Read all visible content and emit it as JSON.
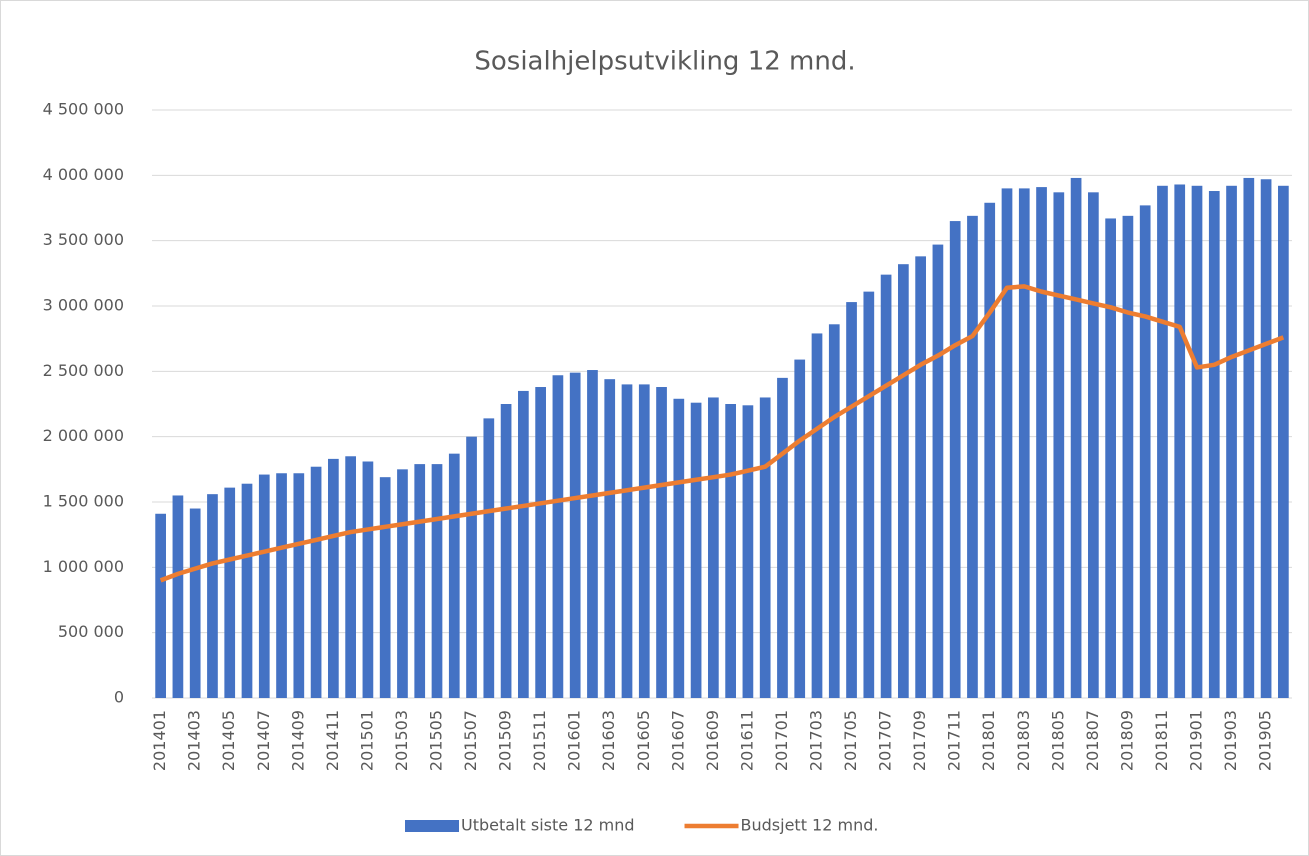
{
  "chart_data": {
    "type": "bar_line",
    "title": "Sosialhjelpsutvikling 12 mnd.",
    "categories": [
      "201401",
      null,
      "201403",
      null,
      "201405",
      null,
      "201407",
      null,
      "201409",
      null,
      "201411",
      null,
      "201501",
      null,
      "201503",
      null,
      "201505",
      null,
      "201507",
      null,
      "201509",
      null,
      "201511",
      null,
      "201601",
      null,
      "201603",
      null,
      "201605",
      null,
      "201607",
      null,
      "201609",
      null,
      "201611",
      null,
      "201701",
      null,
      "201703",
      null,
      "201705",
      null,
      "201707",
      null,
      "201709",
      null,
      "201711",
      null,
      "201801",
      null,
      "201803",
      null,
      "201805",
      null,
      "201807",
      null,
      "201809",
      null,
      "201811",
      null,
      "201901",
      null,
      "201903",
      null,
      "201905",
      null
    ],
    "series": [
      {
        "name": "Utbetalt siste 12 mnd",
        "color": "#4472c4",
        "kind": "bar",
        "values": [
          1410000,
          1550000,
          1450000,
          1560000,
          1610000,
          1640000,
          1710000,
          1720000,
          1720000,
          1770000,
          1830000,
          1850000,
          1810000,
          1690000,
          1750000,
          1790000,
          1790000,
          1870000,
          2000000,
          2140000,
          2250000,
          2350000,
          2380000,
          2470000,
          2490000,
          2510000,
          2440000,
          2400000,
          2400000,
          2380000,
          2290000,
          2260000,
          2300000,
          2250000,
          2240000,
          2300000,
          2450000,
          2590000,
          2790000,
          2860000,
          3030000,
          3110000,
          3240000,
          3320000,
          3380000,
          3470000,
          3650000,
          3690000,
          3790000,
          3900000,
          3900000,
          3910000,
          3870000,
          3980000,
          3870000,
          3670000,
          3690000,
          3770000,
          3920000,
          3930000,
          3920000,
          3880000,
          3920000,
          3980000,
          3970000,
          3920000
        ]
      },
      {
        "name": "Budsjett 12 mnd.",
        "color": "#ed7d31",
        "kind": "line",
        "values": [
          900000,
          950000,
          990000,
          1030000,
          1060000,
          1090000,
          1120000,
          1150000,
          1180000,
          1210000,
          1240000,
          1270000,
          1290000,
          1310000,
          1330000,
          1350000,
          1370000,
          1390000,
          1410000,
          1430000,
          1450000,
          1470000,
          1490000,
          1510000,
          1530000,
          1550000,
          1570000,
          1590000,
          1610000,
          1630000,
          1650000,
          1670000,
          1690000,
          1710000,
          1740000,
          1770000,
          1870000,
          1970000,
          2060000,
          2150000,
          2230000,
          2310000,
          2390000,
          2470000,
          2550000,
          2620000,
          2700000,
          2770000,
          2950000,
          3140000,
          3150000,
          3110000,
          3080000,
          3050000,
          3020000,
          2990000,
          2950000,
          2920000,
          2880000,
          2840000,
          2530000,
          2550000,
          2610000,
          2660000,
          2710000,
          2760000
        ]
      }
    ],
    "ylim": [
      0,
      4500000
    ],
    "yticks": [
      0,
      {
        "value": 500000,
        "label": "500 000"
      },
      {
        "value": 1000000,
        "label": "1 000 000"
      },
      {
        "value": 1500000,
        "label": "1 500 000"
      },
      {
        "value": 2000000,
        "label": "2 000 000"
      },
      {
        "value": 2500000,
        "label": "2 500 000"
      },
      {
        "value": 3000000,
        "label": "3 000 000"
      },
      {
        "value": 3500000,
        "label": "3 500 000"
      },
      {
        "value": 4000000,
        "label": "4 000 000"
      },
      {
        "value": 4500000,
        "label": "4 500 000"
      }
    ],
    "grid": true,
    "legend": "bottom"
  }
}
